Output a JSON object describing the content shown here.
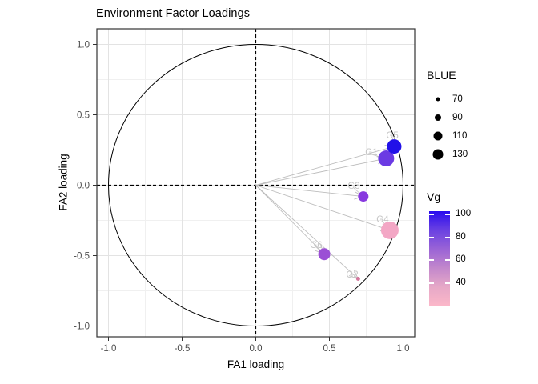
{
  "chart_data": {
    "type": "scatter",
    "title": "Environment Factor Loadings",
    "xlabel": "FA1 loading",
    "ylabel": "FA2 loading",
    "x_tick_labels": [
      "-1.0",
      "-0.5",
      "0.0",
      "0.5",
      "1.0"
    ],
    "x_tick_values": [
      -1.0,
      -0.5,
      0.0,
      0.5,
      1.0
    ],
    "y_tick_labels": [
      "-1.0",
      "-0.5",
      "0.0",
      "0.5",
      "1.0"
    ],
    "y_tick_values": [
      -1.0,
      -0.5,
      0.0,
      0.5,
      1.0
    ],
    "x_minor_tick_values": [
      -0.75,
      -0.25,
      0.25,
      0.75
    ],
    "y_minor_tick_values": [
      -0.75,
      -0.25,
      0.25,
      0.75
    ],
    "xlim": [
      -1.08,
      1.08
    ],
    "ylim": [
      -1.08,
      1.11
    ],
    "grid": "on",
    "unit_circle": true,
    "zero_reference_lines": "dashed",
    "points": [
      {
        "label": "G1",
        "x": 0.885,
        "y": 0.19,
        "BLUE": 120,
        "Vg": 80,
        "color": "#6B3AE3",
        "radius_px": 10,
        "label_x": 0.785,
        "label_y": 0.236
      },
      {
        "label": "G2",
        "x": 0.695,
        "y": -0.665,
        "BLUE": 60,
        "Vg": 45,
        "color": "#D4789E",
        "radius_px": 2.5,
        "label_x": 0.655,
        "label_y": -0.634
      },
      {
        "label": "G3",
        "x": 0.73,
        "y": -0.08,
        "BLUE": 85,
        "Vg": 72,
        "color": "#8839DF",
        "radius_px": 6.5,
        "label_x": 0.666,
        "label_y": -0.003
      },
      {
        "label": "G4",
        "x": 0.91,
        "y": -0.32,
        "BLUE": 130,
        "Vg": 33,
        "color": "#F3A7C5",
        "radius_px": 11,
        "label_x": 0.861,
        "label_y": -0.241
      },
      {
        "label": "G5",
        "x": 0.94,
        "y": 0.275,
        "BLUE": 110,
        "Vg": 100,
        "color": "#2211E8",
        "radius_px": 9,
        "label_x": 0.927,
        "label_y": 0.355
      },
      {
        "label": "G6",
        "x": 0.465,
        "y": -0.49,
        "BLUE": 95,
        "Vg": 63,
        "color": "#9B4FD5",
        "radius_px": 7.5,
        "label_x": 0.41,
        "label_y": -0.423
      }
    ],
    "legends": {
      "size": {
        "title": "BLUE",
        "entries": [
          {
            "label": "70",
            "radius_px": 2.5
          },
          {
            "label": "90",
            "radius_px": 4
          },
          {
            "label": "110",
            "radius_px": 5.5
          },
          {
            "label": "130",
            "radius_px": 6.5
          }
        ]
      },
      "color": {
        "title": "Vg",
        "tick_labels": [
          "100",
          "80",
          "60",
          "40"
        ],
        "tick_values": [
          100,
          80,
          60,
          40
        ],
        "domain": [
          20,
          103
        ],
        "gradient_top_to_bottom": [
          "#2A0BEF",
          "#6A41E2",
          "#9A63D6",
          "#C287CC",
          "#E6A8C7",
          "#FBB7C9"
        ]
      }
    },
    "style": {
      "arrow_color": "#BDBDBD",
      "point_label_color": "#C6C6C6",
      "grid_major": "#E3E3E3",
      "grid_minor": "#F0F0F0",
      "panel_border": "#333333",
      "tick_label_color": "#4D4D4D",
      "circle_color": "#000000",
      "zero_line_color": "#000000"
    }
  }
}
